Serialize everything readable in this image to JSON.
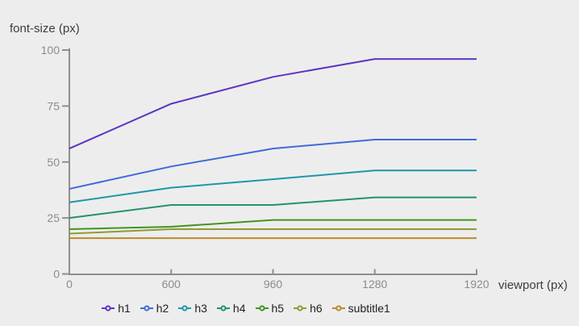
{
  "chart_data": {
    "type": "line",
    "title": "",
    "xlabel": "viewport (px)",
    "ylabel": "font-size (px)",
    "x": [
      0,
      600,
      960,
      1280,
      1920
    ],
    "x_tick_labels": [
      "0",
      "600",
      "960",
      "1280",
      "1920"
    ],
    "x_scale": "point",
    "y_ticks": [
      0,
      25,
      50,
      75,
      100
    ],
    "y_tick_labels": [
      "0",
      "25",
      "50",
      "75",
      "100"
    ],
    "ylim": [
      0,
      100
    ],
    "grid": false,
    "legend_position": "bottom",
    "series": [
      {
        "name": "h1",
        "color": "#5c34c4",
        "values": [
          56,
          76,
          88,
          96,
          96
        ]
      },
      {
        "name": "h2",
        "color": "#3f6ad9",
        "values": [
          38,
          48,
          56,
          60,
          60
        ]
      },
      {
        "name": "h3",
        "color": "#1e97a8",
        "values": [
          32,
          38.5,
          42.3,
          46.2,
          46.2
        ]
      },
      {
        "name": "h4",
        "color": "#23926b",
        "values": [
          25,
          30.8,
          30.8,
          34.2,
          34.2
        ]
      },
      {
        "name": "h5",
        "color": "#43941f",
        "values": [
          20,
          21.1,
          24.1,
          24.1,
          24.1
        ]
      },
      {
        "name": "h6",
        "color": "#8f9c30",
        "values": [
          18,
          20,
          20,
          20,
          20
        ]
      },
      {
        "name": "subtitle1",
        "color": "#bc8a24",
        "values": [
          16,
          16,
          16,
          16,
          16
        ]
      }
    ]
  },
  "colors": {
    "background": "#ededed",
    "axis": "#8f8f8f",
    "tick_label": "#8c8c8c",
    "axis_title": "#3d3d3d",
    "legend_text": "#212121"
  }
}
